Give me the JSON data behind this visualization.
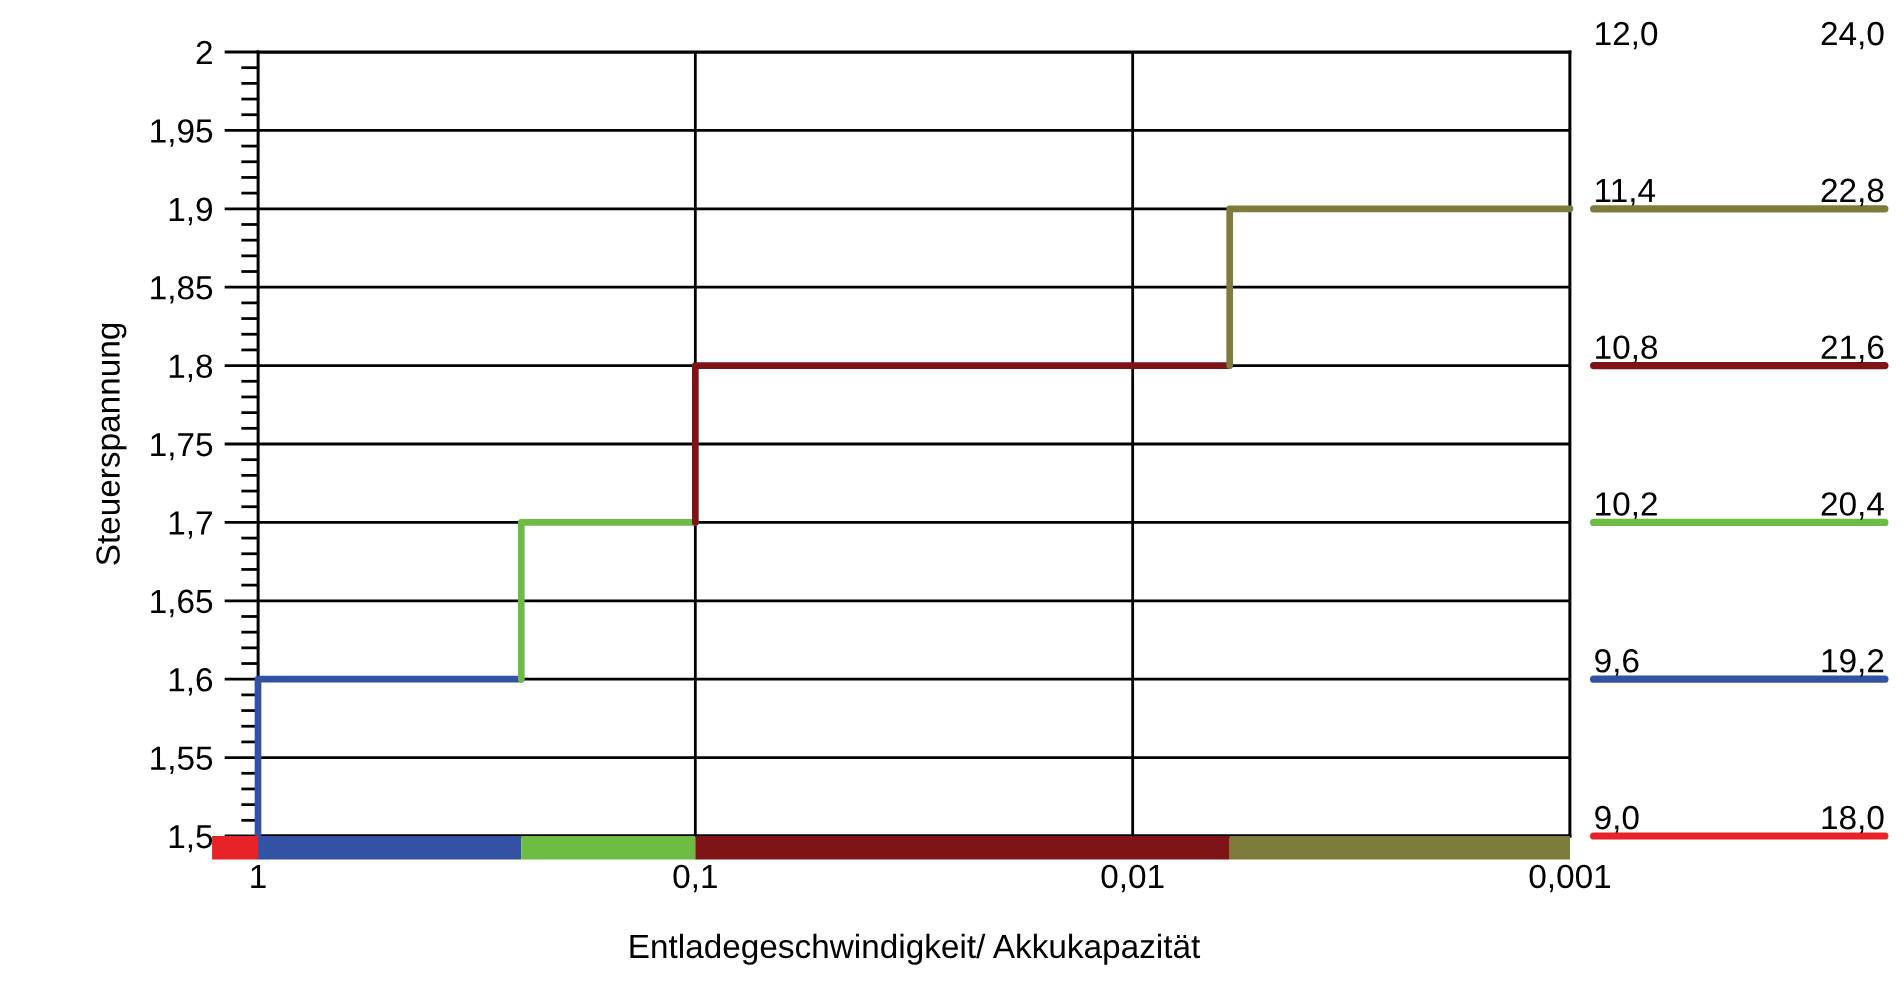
{
  "chart_data": {
    "type": "line",
    "xlabel": "Entladegeschwindigkeit/ Akkukapazität",
    "ylabel": "Steuerspannung",
    "log": "x",
    "xlim": [
      1,
      0.001
    ],
    "xticks": [
      {
        "value": 1,
        "label": "1"
      },
      {
        "value": 0.1,
        "label": "0,1"
      },
      {
        "value": 0.01,
        "label": "0,01"
      },
      {
        "value": 0.001,
        "label": "0,001"
      }
    ],
    "ylim": [
      1.5,
      2
    ],
    "yticks": [
      {
        "value": 1.5,
        "label": "1,5"
      },
      {
        "value": 1.55,
        "label": "1,55"
      },
      {
        "value": 1.6,
        "label": "1,6"
      },
      {
        "value": 1.65,
        "label": "1,65"
      },
      {
        "value": 1.7,
        "label": "1,7"
      },
      {
        "value": 1.75,
        "label": "1,75"
      },
      {
        "value": 1.8,
        "label": "1,8"
      },
      {
        "value": 1.85,
        "label": "1,85"
      },
      {
        "value": 1.9,
        "label": "1,9"
      },
      {
        "value": 1.95,
        "label": "1,95"
      },
      {
        "value": 2,
        "label": "2"
      }
    ],
    "y2lim": [
      9,
      12
    ],
    "y2ticks": [
      {
        "value": 9,
        "label": "9,0"
      },
      {
        "value": 9.6,
        "label": "9,6"
      },
      {
        "value": 10.2,
        "label": "10,2"
      },
      {
        "value": 10.8,
        "label": "10,8"
      },
      {
        "value": 11.4,
        "label": "11,4"
      },
      {
        "value": 12,
        "label": "12,0"
      }
    ],
    "y3lim": [
      18,
      24
    ],
    "y3ticks": [
      {
        "value": 18,
        "label": "18,0"
      },
      {
        "value": 19.2,
        "label": "19,2"
      },
      {
        "value": 20.4,
        "label": "20,4"
      },
      {
        "value": 21.6,
        "label": "21,6"
      },
      {
        "value": 22.8,
        "label": "22,8"
      },
      {
        "value": 24,
        "label": "24,0"
      }
    ],
    "grid": true,
    "line_style": "solid",
    "marker": "none",
    "series": [
      {
        "color": "#3352a3",
        "x": [
          1,
          1,
          0.25
        ],
        "values": [
          1.5,
          1.6,
          1.6
        ]
      },
      {
        "color": "#6dbd45",
        "x": [
          0.25,
          0.25,
          0.1
        ],
        "values": [
          1.6,
          1.7,
          1.7
        ]
      },
      {
        "color": "#7e1416",
        "x": [
          0.1,
          0.1,
          0.006
        ],
        "values": [
          1.7,
          1.8,
          1.8
        ]
      },
      {
        "color": "#7d7c3a",
        "x": [
          0.006,
          0.006,
          0.001
        ],
        "values": [
          1.8,
          1.9,
          1.9
        ]
      }
    ],
    "colors": [
      "#e82327",
      "#3352a3",
      "#6dbd45",
      "#7e1416",
      "#7d7c3a"
    ]
  }
}
